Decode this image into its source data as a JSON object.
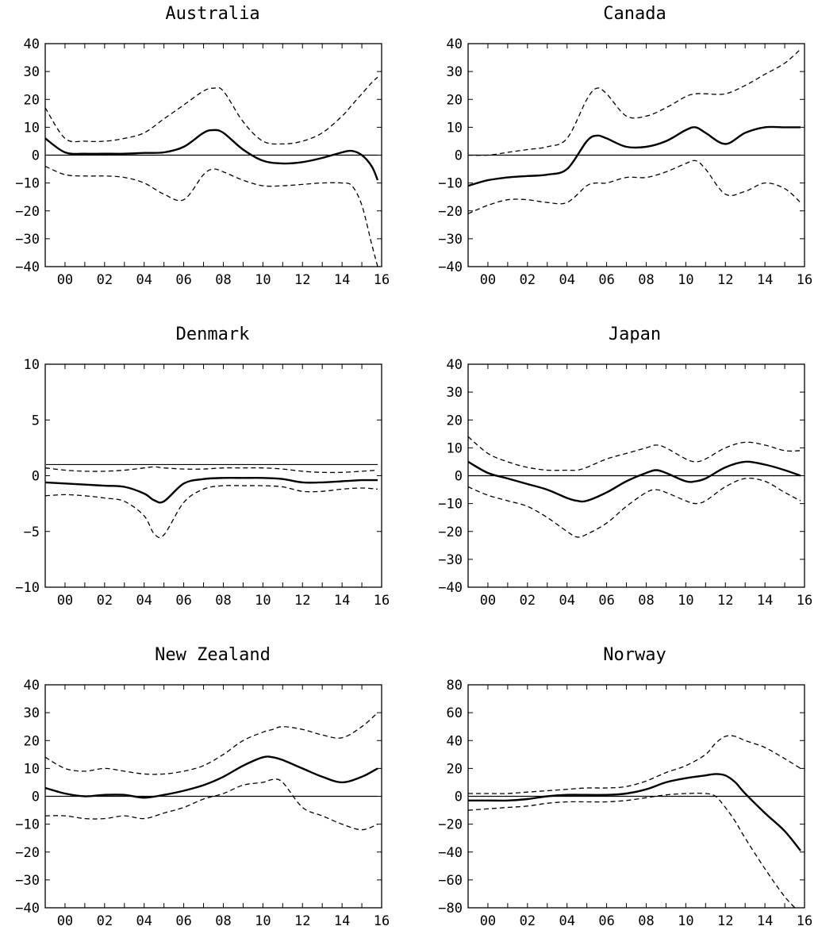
{
  "chart_data": [
    {
      "type": "line",
      "title": "Australia",
      "ylim": [
        -40,
        40
      ],
      "yticks": [
        40,
        30,
        20,
        10,
        0,
        -10,
        -20,
        -30,
        -40
      ],
      "xticks": [
        "00",
        "02",
        "04",
        "06",
        "08",
        "10",
        "12",
        "14",
        "16"
      ],
      "zero_line": 0,
      "x": [
        1999.0,
        2000.0,
        2001.0,
        2002.0,
        2003.0,
        2004.0,
        2005.0,
        2006.0,
        2007.0,
        2007.5,
        2008.0,
        2009.0,
        2010.0,
        2011.0,
        2012.0,
        2013.0,
        2014.0,
        2014.5,
        2015.0,
        2015.5,
        2015.8
      ],
      "series": [
        {
          "style": "solid",
          "values": [
            6,
            1,
            0.5,
            0.5,
            0.5,
            0.8,
            1,
            3,
            8,
            9,
            8,
            2,
            -2,
            -3,
            -2.5,
            -1,
            1,
            1.5,
            0,
            -4,
            -9
          ]
        },
        {
          "style": "dashed",
          "values": [
            17,
            6,
            5,
            5,
            6,
            8,
            13,
            18,
            23,
            24,
            23,
            12,
            5,
            4,
            5,
            8,
            14,
            18,
            22,
            26,
            28
          ]
        },
        {
          "style": "dashed",
          "values": [
            -4,
            -7,
            -7.5,
            -7.5,
            -8,
            -10,
            -14,
            -16,
            -7,
            -5,
            -6,
            -9,
            -11,
            -11,
            -10.5,
            -10,
            -10,
            -11,
            -18,
            -32,
            -40
          ]
        }
      ]
    },
    {
      "type": "line",
      "title": "Canada",
      "ylim": [
        -40,
        40
      ],
      "yticks": [
        40,
        30,
        20,
        10,
        0,
        -10,
        -20,
        -30,
        -40
      ],
      "xticks": [
        "00",
        "02",
        "04",
        "06",
        "08",
        "10",
        "12",
        "14",
        "16"
      ],
      "zero_line": 0,
      "x": [
        1999.0,
        2000.0,
        2001.0,
        2002.0,
        2003.0,
        2004.0,
        2005.0,
        2005.5,
        2006.0,
        2007.0,
        2008.0,
        2009.0,
        2010.0,
        2010.5,
        2011.0,
        2012.0,
        2013.0,
        2014.0,
        2015.0,
        2015.8
      ],
      "series": [
        {
          "style": "solid",
          "values": [
            -11,
            -9,
            -8,
            -7.5,
            -7,
            -5,
            5,
            7,
            6,
            3,
            3,
            5,
            9,
            10,
            8,
            4,
            8,
            10,
            10,
            10
          ]
        },
        {
          "style": "dashed",
          "values": [
            0,
            0,
            1,
            2,
            3,
            6,
            20,
            24,
            22,
            14,
            14,
            17,
            21,
            22,
            22,
            22,
            25,
            29,
            33,
            38
          ]
        },
        {
          "style": "dashed",
          "values": [
            -21,
            -18,
            -16,
            -16,
            -17,
            -17,
            -11,
            -10,
            -10,
            -8,
            -8,
            -6,
            -3,
            -2,
            -5,
            -14,
            -13,
            -10,
            -12,
            -17
          ]
        }
      ]
    },
    {
      "type": "line",
      "title": "Denmark",
      "ylim": [
        -10,
        10
      ],
      "yticks": [
        10,
        5,
        0,
        -5,
        -10
      ],
      "xticks": [
        "00",
        "02",
        "04",
        "06",
        "08",
        "10",
        "12",
        "14",
        "16"
      ],
      "zero_line": 1,
      "x": [
        1999.0,
        2000.0,
        2001.0,
        2002.0,
        2003.0,
        2004.0,
        2004.5,
        2005.0,
        2006.0,
        2007.0,
        2008.0,
        2009.0,
        2010.0,
        2011.0,
        2012.0,
        2013.0,
        2014.0,
        2015.0,
        2015.8
      ],
      "series": [
        {
          "style": "solid",
          "values": [
            -0.6,
            -0.7,
            -0.8,
            -0.9,
            -1.0,
            -1.6,
            -2.2,
            -2.3,
            -0.7,
            -0.3,
            -0.2,
            -0.2,
            -0.2,
            -0.3,
            -0.6,
            -0.6,
            -0.5,
            -0.4,
            -0.4
          ]
        },
        {
          "style": "dashed",
          "values": [
            0.7,
            0.5,
            0.4,
            0.4,
            0.5,
            0.7,
            0.8,
            0.7,
            0.6,
            0.6,
            0.7,
            0.7,
            0.7,
            0.6,
            0.4,
            0.3,
            0.3,
            0.4,
            0.5
          ]
        },
        {
          "style": "dashed",
          "values": [
            -1.8,
            -1.7,
            -1.8,
            -2.0,
            -2.3,
            -3.6,
            -5.2,
            -5.3,
            -2.4,
            -1.2,
            -0.9,
            -0.9,
            -0.9,
            -1.0,
            -1.4,
            -1.4,
            -1.2,
            -1.1,
            -1.2
          ]
        }
      ]
    },
    {
      "type": "line",
      "title": "Japan",
      "ylim": [
        -40,
        40
      ],
      "yticks": [
        40,
        30,
        20,
        10,
        0,
        -10,
        -20,
        -30,
        -40
      ],
      "xticks": [
        "00",
        "02",
        "04",
        "06",
        "08",
        "10",
        "12",
        "14",
        "16"
      ],
      "zero_line": 0,
      "x": [
        1999.0,
        2000.0,
        2001.0,
        2002.0,
        2003.0,
        2004.0,
        2004.5,
        2005.0,
        2006.0,
        2007.0,
        2008.0,
        2008.5,
        2009.0,
        2010.0,
        2010.5,
        2011.0,
        2012.0,
        2013.0,
        2014.0,
        2015.0,
        2015.8
      ],
      "series": [
        {
          "style": "solid",
          "values": [
            5,
            1,
            -1,
            -3,
            -5,
            -8,
            -9,
            -9,
            -6,
            -2,
            1,
            2,
            1,
            -2,
            -2,
            -1,
            3,
            5,
            4,
            2,
            0
          ]
        },
        {
          "style": "dashed",
          "values": [
            14,
            8,
            5,
            3,
            2,
            2,
            2,
            3,
            6,
            8,
            10,
            11,
            10,
            6,
            5,
            6,
            10,
            12,
            11,
            9,
            9
          ]
        },
        {
          "style": "dashed",
          "values": [
            -4,
            -7,
            -9,
            -11,
            -15,
            -20,
            -22,
            -21,
            -17,
            -11,
            -6,
            -5,
            -6,
            -9,
            -10,
            -9,
            -4,
            -1,
            -2,
            -6,
            -9
          ]
        }
      ]
    },
    {
      "type": "line",
      "title": "New Zealand",
      "ylim": [
        -40,
        40
      ],
      "yticks": [
        40,
        30,
        20,
        10,
        0,
        -10,
        -20,
        -30,
        -40
      ],
      "xticks": [
        "00",
        "02",
        "04",
        "06",
        "08",
        "10",
        "12",
        "14",
        "16"
      ],
      "zero_line": 0,
      "x": [
        1999.0,
        2000.0,
        2001.0,
        2002.0,
        2003.0,
        2004.0,
        2005.0,
        2006.0,
        2007.0,
        2008.0,
        2009.0,
        2010.0,
        2010.5,
        2011.0,
        2012.0,
        2013.0,
        2014.0,
        2015.0,
        2015.8
      ],
      "series": [
        {
          "style": "solid",
          "values": [
            3,
            1,
            0,
            0.5,
            0.5,
            -0.5,
            0.5,
            2,
            4,
            7,
            11,
            14,
            14,
            13,
            10,
            7,
            5,
            7,
            10
          ]
        },
        {
          "style": "dashed",
          "values": [
            14,
            10,
            9,
            10,
            9,
            8,
            8,
            9,
            11,
            15,
            20,
            23,
            24,
            25,
            24,
            22,
            21,
            25,
            30
          ]
        },
        {
          "style": "dashed",
          "values": [
            -7,
            -7,
            -8,
            -8,
            -7,
            -8,
            -6,
            -4,
            -1,
            1,
            4,
            5,
            6,
            5,
            -4,
            -7,
            -10,
            -12,
            -10
          ]
        }
      ]
    },
    {
      "type": "line",
      "title": "Norway",
      "ylim": [
        -80,
        80
      ],
      "yticks": [
        80,
        60,
        40,
        20,
        0,
        -20,
        -40,
        -60,
        -80
      ],
      "xticks": [
        "00",
        "02",
        "04",
        "06",
        "08",
        "10",
        "12",
        "14",
        "16"
      ],
      "zero_line": 0,
      "x": [
        1999.0,
        2000.0,
        2001.0,
        2002.0,
        2003.0,
        2004.0,
        2005.0,
        2006.0,
        2007.0,
        2008.0,
        2009.0,
        2010.0,
        2011.0,
        2011.5,
        2012.0,
        2012.5,
        2013.0,
        2014.0,
        2015.0,
        2015.8
      ],
      "series": [
        {
          "style": "solid",
          "values": [
            -3,
            -3,
            -3,
            -2,
            0,
            1,
            1,
            1,
            2,
            5,
            10,
            13,
            15,
            16,
            15,
            10,
            2,
            -12,
            -25,
            -39
          ]
        },
        {
          "style": "dashed",
          "values": [
            2,
            2,
            2,
            3,
            4,
            5,
            6,
            6,
            7,
            11,
            17,
            22,
            30,
            38,
            43,
            43,
            40,
            35,
            27,
            20
          ]
        },
        {
          "style": "dashed",
          "values": [
            -10,
            -9,
            -8,
            -7,
            -5,
            -4,
            -4,
            -4,
            -3,
            -1,
            1,
            2,
            2,
            0,
            -8,
            -18,
            -30,
            -52,
            -72,
            -84
          ]
        }
      ]
    }
  ]
}
